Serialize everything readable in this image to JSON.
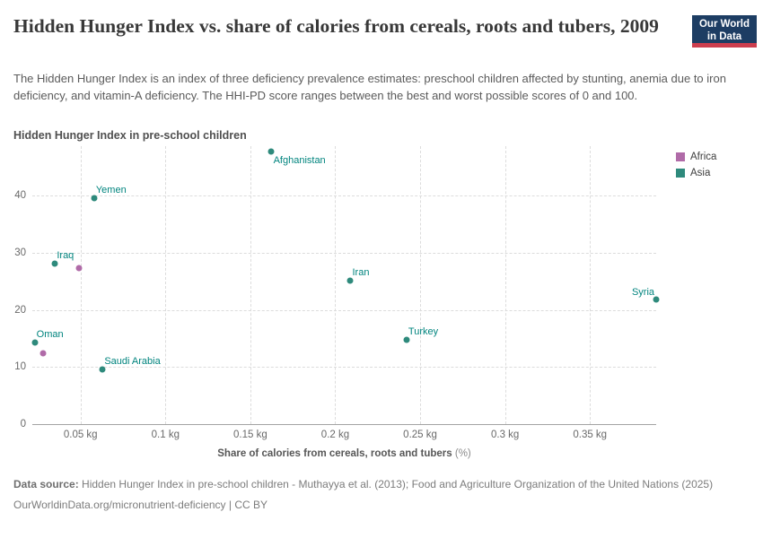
{
  "header": {
    "logo": {
      "line1": "Our World",
      "line2": "in Data"
    }
  },
  "chart_data": {
    "type": "scatter",
    "title": "Hidden Hunger Index vs. share of calories from cereals, roots and tubers, 2009",
    "subtitle": "The Hidden Hunger Index is an index of three deficiency prevalence estimates: preschool children affected by stunting, anemia due to iron deficiency, and vitamin-A deficiency. The HHI-PD score ranges between the best and worst possible scores of 0 and 100.",
    "ylabel": "Hidden Hunger Index in pre-school children",
    "xlabel": "Share of calories from cereals, roots and tubers",
    "xlabel_unit": "(%)",
    "xlim": [
      0.0216,
      0.389
    ],
    "ylim": [
      0,
      48.7
    ],
    "grid": true,
    "legend_position": "right",
    "xticks": [
      {
        "value": 0.05,
        "label": "0.05 kg"
      },
      {
        "value": 0.1,
        "label": "0.1 kg"
      },
      {
        "value": 0.15,
        "label": "0.15 kg"
      },
      {
        "value": 0.2,
        "label": "0.2 kg"
      },
      {
        "value": 0.25,
        "label": "0.25 kg"
      },
      {
        "value": 0.3,
        "label": "0.3 kg"
      },
      {
        "value": 0.35,
        "label": "0.35 kg"
      }
    ],
    "yticks": [
      {
        "value": 0,
        "label": "0"
      },
      {
        "value": 10,
        "label": "10"
      },
      {
        "value": 20,
        "label": "20"
      },
      {
        "value": 30,
        "label": "30"
      },
      {
        "value": 40,
        "label": "40"
      }
    ],
    "series": [
      {
        "name": "Africa",
        "color": "#b06ba8",
        "points": [
          {
            "x": 0.049,
            "y": 27.4
          },
          {
            "x": 0.028,
            "y": 12.4
          }
        ]
      },
      {
        "name": "Asia",
        "color": "#2e8a7c",
        "label_color": "#00847e",
        "points": [
          {
            "name": "Afghanistan",
            "x": 0.162,
            "y": 47.8,
            "label_pos": "below-right"
          },
          {
            "name": "Yemen",
            "x": 0.058,
            "y": 39.6
          },
          {
            "name": "Iraq",
            "x": 0.035,
            "y": 28.1
          },
          {
            "name": "Iran",
            "x": 0.209,
            "y": 25.2
          },
          {
            "name": "Syria",
            "x": 0.389,
            "y": 21.8,
            "label_pos": "above-left"
          },
          {
            "name": "Oman",
            "x": 0.023,
            "y": 14.3
          },
          {
            "name": "Turkey",
            "x": 0.242,
            "y": 14.8
          },
          {
            "name": "Saudi Arabia",
            "x": 0.063,
            "y": 9.6
          }
        ]
      }
    ]
  },
  "footer": {
    "data_source_label": "Data source:",
    "data_source_text": " Hidden Hunger Index in pre-school children - Muthayya et al. (2013); Food and Agriculture Organization of the United Nations (2025)",
    "url": "OurWorldinData.org/micronutrient-deficiency",
    "separator": " | ",
    "license": "CC BY"
  }
}
